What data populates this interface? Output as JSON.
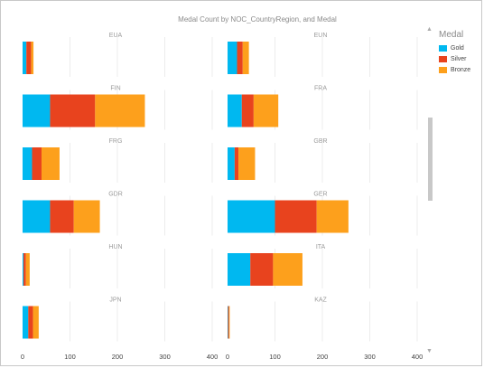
{
  "chart_data": {
    "type": "bar",
    "title": "Medal Count by NOC_CountryRegion, and Medal",
    "legend": {
      "title": "Medal",
      "placement": "right",
      "entries": [
        "Gold",
        "Silver",
        "Bronze"
      ]
    },
    "colors": {
      "Gold": "#00b8f0",
      "Silver": "#e8431e",
      "Bronze": "#fda01c"
    },
    "xlim": [
      0,
      400
    ],
    "xticks": [
      "0",
      "100",
      "200",
      "300",
      "400"
    ],
    "stacked": true,
    "grid": true,
    "panels": [
      {
        "name": "EUA",
        "values": {
          "Gold": 8,
          "Silver": 10,
          "Bronze": 5
        }
      },
      {
        "name": "EUN",
        "values": {
          "Gold": 20,
          "Silver": 12,
          "Bronze": 13
        }
      },
      {
        "name": "FIN",
        "values": {
          "Gold": 58,
          "Silver": 95,
          "Bronze": 105
        }
      },
      {
        "name": "FRA",
        "values": {
          "Gold": 30,
          "Silver": 25,
          "Bronze": 52
        }
      },
      {
        "name": "FRG",
        "values": {
          "Gold": 20,
          "Silver": 20,
          "Bronze": 38
        }
      },
      {
        "name": "GBR",
        "values": {
          "Gold": 15,
          "Silver": 8,
          "Bronze": 35
        }
      },
      {
        "name": "GDR",
        "values": {
          "Gold": 58,
          "Silver": 50,
          "Bronze": 55
        }
      },
      {
        "name": "GER",
        "values": {
          "Gold": 100,
          "Silver": 88,
          "Bronze": 67
        }
      },
      {
        "name": "HUN",
        "values": {
          "Gold": 2,
          "Silver": 5,
          "Bronze": 8
        }
      },
      {
        "name": "ITA",
        "values": {
          "Gold": 48,
          "Silver": 48,
          "Bronze": 62
        }
      },
      {
        "name": "JPN",
        "values": {
          "Gold": 12,
          "Silver": 10,
          "Bronze": 12
        }
      },
      {
        "name": "KAZ",
        "values": {
          "Gold": 1,
          "Silver": 2,
          "Bronze": 1
        }
      }
    ]
  },
  "ui": {
    "scroll_up": "▲",
    "scroll_down": "▼"
  }
}
